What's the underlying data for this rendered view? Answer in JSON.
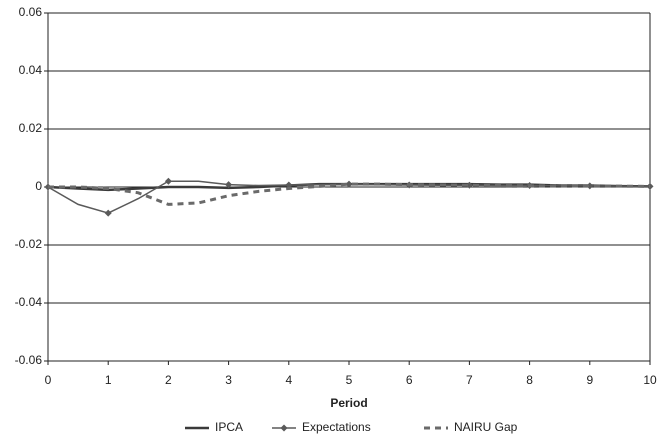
{
  "chart_data": {
    "type": "line",
    "xlabel": "Period",
    "x": [
      0,
      0.5,
      1,
      1.5,
      2,
      2.5,
      3,
      3.5,
      4,
      4.5,
      5,
      5.5,
      6,
      6.5,
      7,
      7.5,
      8,
      8.5,
      9,
      9.5,
      10
    ],
    "series": [
      {
        "name": "IPCA",
        "color": "#3a3a3a",
        "width": 2.5,
        "dash": false,
        "marker": "none",
        "values": [
          0,
          -0.0005,
          -0.001,
          -0.0005,
          0,
          0,
          -0.0003,
          0,
          0.0005,
          0.001,
          0.001,
          0.001,
          0.001,
          0.001,
          0.001,
          0.0008,
          0.0008,
          0.0005,
          0.0005,
          0.0003,
          0.0002
        ]
      },
      {
        "name": "Expectations",
        "color": "#5a5a5a",
        "width": 1.5,
        "dash": false,
        "marker": "diamond",
        "values": [
          0,
          -0.006,
          -0.009,
          -0.004,
          0.002,
          0.002,
          0.0008,
          0.0005,
          0.0007,
          0.0008,
          0.001,
          0.0008,
          0.0007,
          0.0006,
          0.0006,
          0.0005,
          0.0005,
          0.0004,
          0.0004,
          0.0003,
          0.0002
        ]
      },
      {
        "name": "NAIRU Gap",
        "color": "#6a6a6a",
        "width": 3,
        "dash": true,
        "marker": "none",
        "values": [
          0,
          0,
          -0.0005,
          -0.002,
          -0.006,
          -0.0055,
          -0.003,
          -0.0015,
          -0.0005,
          0.0002,
          0.001,
          0.001,
          0.0008,
          0.0007,
          0.0006,
          0.0005,
          0.0004,
          0.0004,
          0.0003,
          0.0003,
          0.0002
        ]
      }
    ],
    "xlim": [
      0,
      10
    ],
    "xticks": [
      0,
      1,
      2,
      3,
      4,
      5,
      6,
      7,
      8,
      9,
      10
    ],
    "ylim": [
      -0.06,
      0.06
    ],
    "yticks": [
      -0.06,
      -0.04,
      -0.02,
      0,
      0.02,
      0.04,
      0.06
    ],
    "grid": true
  }
}
